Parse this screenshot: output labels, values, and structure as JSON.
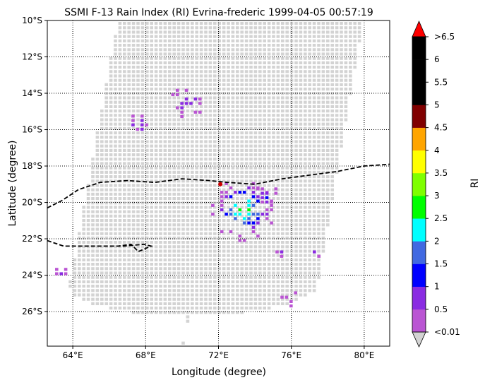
{
  "chart_data": {
    "type": "heatmap",
    "title": "SSMI F-13 Rain Index (RI) Evrina-frederic 1999-04-05 00:57:19",
    "xlabel": "Longitude (degree)",
    "ylabel": "Latitude (degree)",
    "xlim": [
      62.6,
      81.4
    ],
    "ylim": [
      -27.9,
      -10.0
    ],
    "x_ticks": [
      {
        "value": 64,
        "label": "64°E"
      },
      {
        "value": 68,
        "label": "68°E"
      },
      {
        "value": 72,
        "label": "72°E"
      },
      {
        "value": 76,
        "label": "76°E"
      },
      {
        "value": 80,
        "label": "80°E"
      }
    ],
    "y_ticks": [
      {
        "value": -10,
        "label": "10°S"
      },
      {
        "value": -12,
        "label": "12°S"
      },
      {
        "value": -14,
        "label": "14°S"
      },
      {
        "value": -16,
        "label": "16°S"
      },
      {
        "value": -18,
        "label": "18°S"
      },
      {
        "value": -20,
        "label": "20°S"
      },
      {
        "value": -22,
        "label": "22°S"
      },
      {
        "value": -24,
        "label": "24°S"
      },
      {
        "value": -26,
        "label": "26°S"
      }
    ],
    "grid": true,
    "swath_color": "#d3d3d3",
    "colorbar": {
      "label": "RI",
      "tick_labels": [
        "<0.01",
        "0.5",
        "1",
        "1.5",
        "2",
        "2.5",
        "3",
        "3.5",
        "4",
        "4.5",
        "5",
        "5.5",
        "6",
        ">6.5"
      ],
      "colors": [
        "#ba55d3",
        "#8a2be2",
        "#0000ff",
        "#4169e1",
        "#00ffff",
        "#00ff00",
        "#7fff00",
        "#ffff00",
        "#ffa500",
        "#800000",
        "#000000",
        "#000000",
        "#000000"
      ],
      "under_color": "#d3d3d3",
      "over_color": "#ff0000"
    },
    "rain_regions": [
      {
        "lon": 67.5,
        "lat": -15.6,
        "radius": 0.6,
        "peak": 1.2
      },
      {
        "lon": 70.2,
        "lat": -14.4,
        "radius": 0.8,
        "peak": 1.1
      },
      {
        "lon": 73.3,
        "lat": -20.3,
        "radius": 1.5,
        "peak": 3.2
      },
      {
        "lon": 74.6,
        "lat": -19.6,
        "radius": 0.6,
        "peak": 1.6
      },
      {
        "lon": 77.2,
        "lat": -22.6,
        "radius": 0.4,
        "peak": 1.0
      },
      {
        "lon": 75.4,
        "lat": -22.6,
        "radius": 0.4,
        "peak": 1.0
      },
      {
        "lon": 63.3,
        "lat": -23.8,
        "radius": 0.4,
        "peak": 0.6
      },
      {
        "lon": 75.8,
        "lat": -25.2,
        "radius": 0.5,
        "peak": 0.6
      }
    ],
    "center_marker": {
      "lon": 72.1,
      "lat": -19.0,
      "color": "#cc0000"
    },
    "coastlines": [
      [
        [
          62.6,
          -20.3
        ],
        [
          63.4,
          -19.9
        ],
        [
          64.3,
          -19.3
        ],
        [
          65.5,
          -18.9
        ],
        [
          67.0,
          -18.8
        ],
        [
          68.5,
          -18.9
        ],
        [
          70.0,
          -18.7
        ],
        [
          71.5,
          -18.8
        ],
        [
          72.5,
          -18.9
        ],
        [
          74.0,
          -19.0
        ],
        [
          75.5,
          -18.7
        ],
        [
          77.0,
          -18.5
        ],
        [
          78.5,
          -18.3
        ],
        [
          80.0,
          -18.0
        ],
        [
          81.4,
          -17.9
        ]
      ],
      [
        [
          62.6,
          -22.1
        ],
        [
          63.5,
          -22.4
        ],
        [
          65.0,
          -22.4
        ],
        [
          66.8,
          -22.4
        ],
        [
          67.9,
          -22.3
        ],
        [
          68.3,
          -22.4
        ],
        [
          67.6,
          -22.7
        ],
        [
          67.2,
          -22.3
        ],
        [
          66.5,
          -22.4
        ]
      ]
    ]
  }
}
